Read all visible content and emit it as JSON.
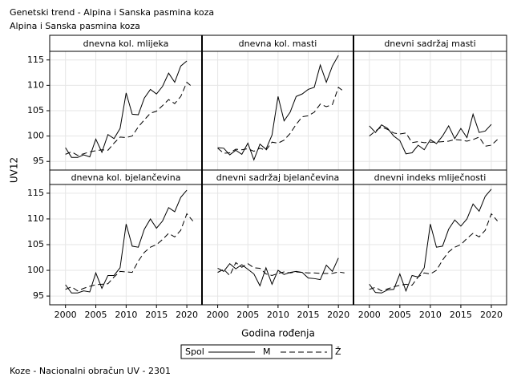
{
  "title": "Genetski trend - Alpina i Sanska pasmina koza",
  "subtitle": "Alpina i Sanska pasmina koza",
  "xlabel": "Godina rođenja",
  "ylabel": "UV12",
  "legend_title": "Spol",
  "footnote": "Koze - Nacionalni obračun UV - 2301",
  "chart_data": [
    {
      "type": "line",
      "title": "dnevna kol. mlijeka",
      "x": [
        2000,
        2001,
        2002,
        2003,
        2004,
        2005,
        2006,
        2007,
        2008,
        2009,
        2010,
        2011,
        2012,
        2013,
        2014,
        2015,
        2016,
        2017,
        2018,
        2019,
        2020,
        2021
      ],
      "xlim": [
        1997.4,
        2022.5
      ],
      "xticks": [
        2000,
        2005,
        2010,
        2015,
        2020
      ],
      "ylim": [
        93.3,
        116.7
      ],
      "yticks": [
        95,
        100,
        105,
        110,
        115
      ],
      "grid": true,
      "series": [
        {
          "name": "M",
          "color": "#000000",
          "dash": "solid",
          "values": [
            97.7,
            95.8,
            95.8,
            96.3,
            95.9,
            99.4,
            96.8,
            100.3,
            99.5,
            101.5,
            108.5,
            104.3,
            104.2,
            107.5,
            109.2,
            108.3,
            109.8,
            112.4,
            110.6,
            113.8,
            114.8,
            null
          ]
        },
        {
          "name": "Ž",
          "color": "#000000",
          "dash": "dashed",
          "values": [
            96.4,
            96.9,
            96.2,
            96.5,
            96.9,
            97.1,
            97.3,
            97.2,
            98.6,
            99.8,
            99.7,
            100.0,
            101.8,
            103.2,
            104.5,
            104.9,
            106.0,
            107.2,
            106.4,
            107.8,
            110.6,
            109.6
          ]
        }
      ]
    },
    {
      "type": "line",
      "title": "dnevna kol. masti",
      "x": [
        2000,
        2001,
        2002,
        2003,
        2004,
        2005,
        2006,
        2007,
        2008,
        2009,
        2010,
        2011,
        2012,
        2013,
        2014,
        2015,
        2016,
        2017,
        2018,
        2019,
        2020,
        2021
      ],
      "xlim": [
        1997.4,
        2022.5
      ],
      "xticks": [
        2000,
        2005,
        2010,
        2015,
        2020
      ],
      "ylim": [
        93.3,
        116.7
      ],
      "yticks": [
        95,
        100,
        105,
        110,
        115
      ],
      "grid": true,
      "series": [
        {
          "name": "M",
          "color": "#000000",
          "dash": "solid",
          "values": [
            97.7,
            97.6,
            96.3,
            97.2,
            96.4,
            98.6,
            95.3,
            98.4,
            97.4,
            100.2,
            107.8,
            103.0,
            104.7,
            107.8,
            108.3,
            109.2,
            109.6,
            114.0,
            110.6,
            113.8,
            115.9,
            null
          ]
        },
        {
          "name": "Ž",
          "color": "#000000",
          "dash": "dashed",
          "values": [
            97.6,
            96.6,
            96.7,
            97.4,
            97.3,
            97.5,
            97.0,
            97.6,
            97.2,
            98.8,
            98.6,
            99.2,
            100.5,
            102.3,
            103.8,
            104.0,
            104.7,
            106.3,
            105.8,
            106.2,
            109.6,
            108.7
          ]
        }
      ]
    },
    {
      "type": "line",
      "title": "dnevni sadržaj masti",
      "x": [
        2000,
        2001,
        2002,
        2003,
        2004,
        2005,
        2006,
        2007,
        2008,
        2009,
        2010,
        2011,
        2012,
        2013,
        2014,
        2015,
        2016,
        2017,
        2018,
        2019,
        2020,
        2021
      ],
      "xlim": [
        1997.4,
        2022.5
      ],
      "xticks": [
        2000,
        2005,
        2010,
        2015,
        2020
      ],
      "ylim": [
        93.3,
        116.7
      ],
      "yticks": [
        95,
        100,
        105,
        110,
        115
      ],
      "grid": true,
      "series": [
        {
          "name": "M",
          "color": "#000000",
          "dash": "solid",
          "values": [
            102.0,
            100.7,
            102.2,
            101.5,
            100.0,
            99.1,
            96.5,
            96.7,
            98.2,
            97.3,
            99.3,
            98.5,
            100.0,
            102.0,
            99.5,
            101.5,
            99.7,
            104.3,
            100.7,
            101.0,
            102.3,
            null
          ]
        },
        {
          "name": "Ž",
          "color": "#000000",
          "dash": "dashed",
          "values": [
            100.0,
            101.0,
            101.8,
            101.3,
            100.6,
            100.4,
            100.6,
            98.7,
            98.9,
            98.7,
            98.8,
            98.8,
            98.9,
            99.0,
            99.3,
            99.2,
            99.0,
            99.3,
            99.8,
            98.0,
            98.2,
            99.3
          ]
        }
      ]
    },
    {
      "type": "line",
      "title": "dnevna kol. bjelančevina",
      "x": [
        2000,
        2001,
        2002,
        2003,
        2004,
        2005,
        2006,
        2007,
        2008,
        2009,
        2010,
        2011,
        2012,
        2013,
        2014,
        2015,
        2016,
        2017,
        2018,
        2019,
        2020,
        2021
      ],
      "xlim": [
        1997.4,
        2022.5
      ],
      "xticks": [
        2000,
        2005,
        2010,
        2015,
        2020
      ],
      "ylim": [
        93.3,
        116.7
      ],
      "yticks": [
        95,
        100,
        105,
        110,
        115
      ],
      "grid": true,
      "series": [
        {
          "name": "M",
          "color": "#000000",
          "dash": "solid",
          "values": [
            97.2,
            95.6,
            95.6,
            96.0,
            95.8,
            99.5,
            96.5,
            99.0,
            99.0,
            100.5,
            109.0,
            104.7,
            104.5,
            108.0,
            110.0,
            108.2,
            109.6,
            112.2,
            111.4,
            114.2,
            115.6,
            null
          ]
        },
        {
          "name": "Ž",
          "color": "#000000",
          "dash": "dashed",
          "values": [
            96.3,
            96.8,
            96.0,
            96.5,
            96.9,
            97.2,
            97.3,
            97.4,
            98.7,
            99.8,
            99.7,
            99.6,
            101.8,
            103.5,
            104.5,
            105.0,
            106.0,
            107.2,
            106.5,
            107.8,
            111.0,
            109.6
          ]
        }
      ]
    },
    {
      "type": "line",
      "title": "dnevni sadržaj bjelančevina",
      "x": [
        2000,
        2001,
        2002,
        2003,
        2004,
        2005,
        2006,
        2007,
        2008,
        2009,
        2010,
        2011,
        2012,
        2013,
        2014,
        2015,
        2016,
        2017,
        2018,
        2019,
        2020,
        2021
      ],
      "xlim": [
        1997.4,
        2022.5
      ],
      "xticks": [
        2000,
        2005,
        2010,
        2015,
        2020
      ],
      "ylim": [
        93.3,
        116.7
      ],
      "yticks": [
        95,
        100,
        105,
        110,
        115
      ],
      "grid": true,
      "series": [
        {
          "name": "M",
          "color": "#000000",
          "dash": "solid",
          "values": [
            100.4,
            99.8,
            101.3,
            100.3,
            101.1,
            100.2,
            99.3,
            97.0,
            100.5,
            97.3,
            100.0,
            99.2,
            99.6,
            99.8,
            99.6,
            98.5,
            98.4,
            98.2,
            101.0,
            99.8,
            102.4,
            null
          ]
        },
        {
          "name": "Ž",
          "color": "#000000",
          "dash": "dashed",
          "values": [
            99.6,
            100.2,
            99.0,
            101.5,
            100.6,
            101.3,
            100.5,
            100.4,
            99.3,
            99.0,
            99.4,
            99.7,
            99.5,
            99.7,
            99.6,
            99.5,
            99.5,
            99.4,
            99.4,
            99.4,
            99.7,
            99.5
          ]
        }
      ]
    },
    {
      "type": "line",
      "title": "dnevni indeks mliječnosti",
      "x": [
        2000,
        2001,
        2002,
        2003,
        2004,
        2005,
        2006,
        2007,
        2008,
        2009,
        2010,
        2011,
        2012,
        2013,
        2014,
        2015,
        2016,
        2017,
        2018,
        2019,
        2020,
        2021
      ],
      "xlim": [
        1997.4,
        2022.5
      ],
      "xticks": [
        2000,
        2005,
        2010,
        2015,
        2020
      ],
      "ylim": [
        93.3,
        116.7
      ],
      "yticks": [
        95,
        100,
        105,
        110,
        115
      ],
      "grid": true,
      "series": [
        {
          "name": "M",
          "color": "#000000",
          "dash": "solid",
          "values": [
            97.3,
            95.7,
            95.6,
            96.2,
            96.3,
            99.3,
            96.0,
            99.0,
            98.7,
            100.5,
            109.0,
            104.5,
            104.7,
            108.0,
            109.8,
            108.6,
            110.0,
            112.9,
            111.5,
            114.4,
            115.8,
            null
          ]
        },
        {
          "name": "Ž",
          "color": "#000000",
          "dash": "dashed",
          "values": [
            96.3,
            96.7,
            96.0,
            96.4,
            96.8,
            97.1,
            97.3,
            97.1,
            98.7,
            99.5,
            99.3,
            100.0,
            102.0,
            103.6,
            104.5,
            105.0,
            106.2,
            107.2,
            106.5,
            107.8,
            111.0,
            109.6
          ]
        }
      ]
    }
  ]
}
